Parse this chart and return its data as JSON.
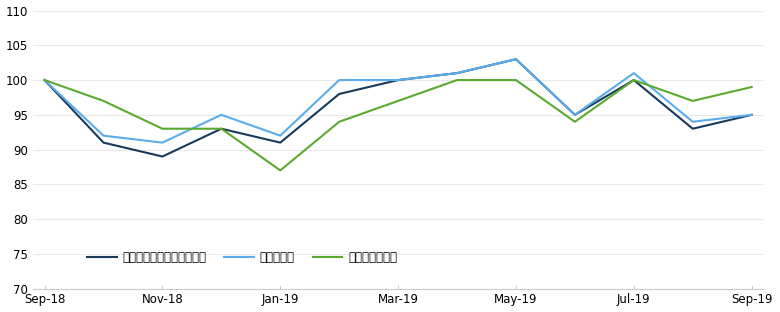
{
  "asia_ex_japan": [
    100,
    91,
    89,
    93,
    91,
    98,
    100,
    101,
    103,
    95,
    100,
    93,
    95
  ],
  "emerging": [
    100,
    92,
    91,
    95,
    92,
    100,
    100,
    101,
    103,
    95,
    101,
    94,
    95
  ],
  "global": [
    100,
    97,
    93,
    93,
    87,
    94,
    97,
    100,
    100,
    94,
    100,
    97,
    99
  ],
  "asia_color": "#1a3a5c",
  "emerging_color": "#5aaceb",
  "global_color": "#5aaa30",
  "ylim_min": 70,
  "ylim_max": 110,
  "yticks": [
    70,
    75,
    80,
    85,
    90,
    95,
    100,
    105,
    110
  ],
  "x_tick_positions": [
    0,
    2,
    4,
    6,
    8,
    10,
    12
  ],
  "x_tick_labels": [
    "Sep-18",
    "Nov-18",
    "Jan-19",
    "Mar-19",
    "May-19",
    "Jul-19",
    "Sep-19"
  ],
  "legend_labels": [
    "アジア株式（日本を除く）",
    "新兴国株式",
    "グローバル株式"
  ],
  "background_color": "#ffffff",
  "line_width": 1.5,
  "spine_color": "#cccccc",
  "grid_color": "#e8e8e8"
}
